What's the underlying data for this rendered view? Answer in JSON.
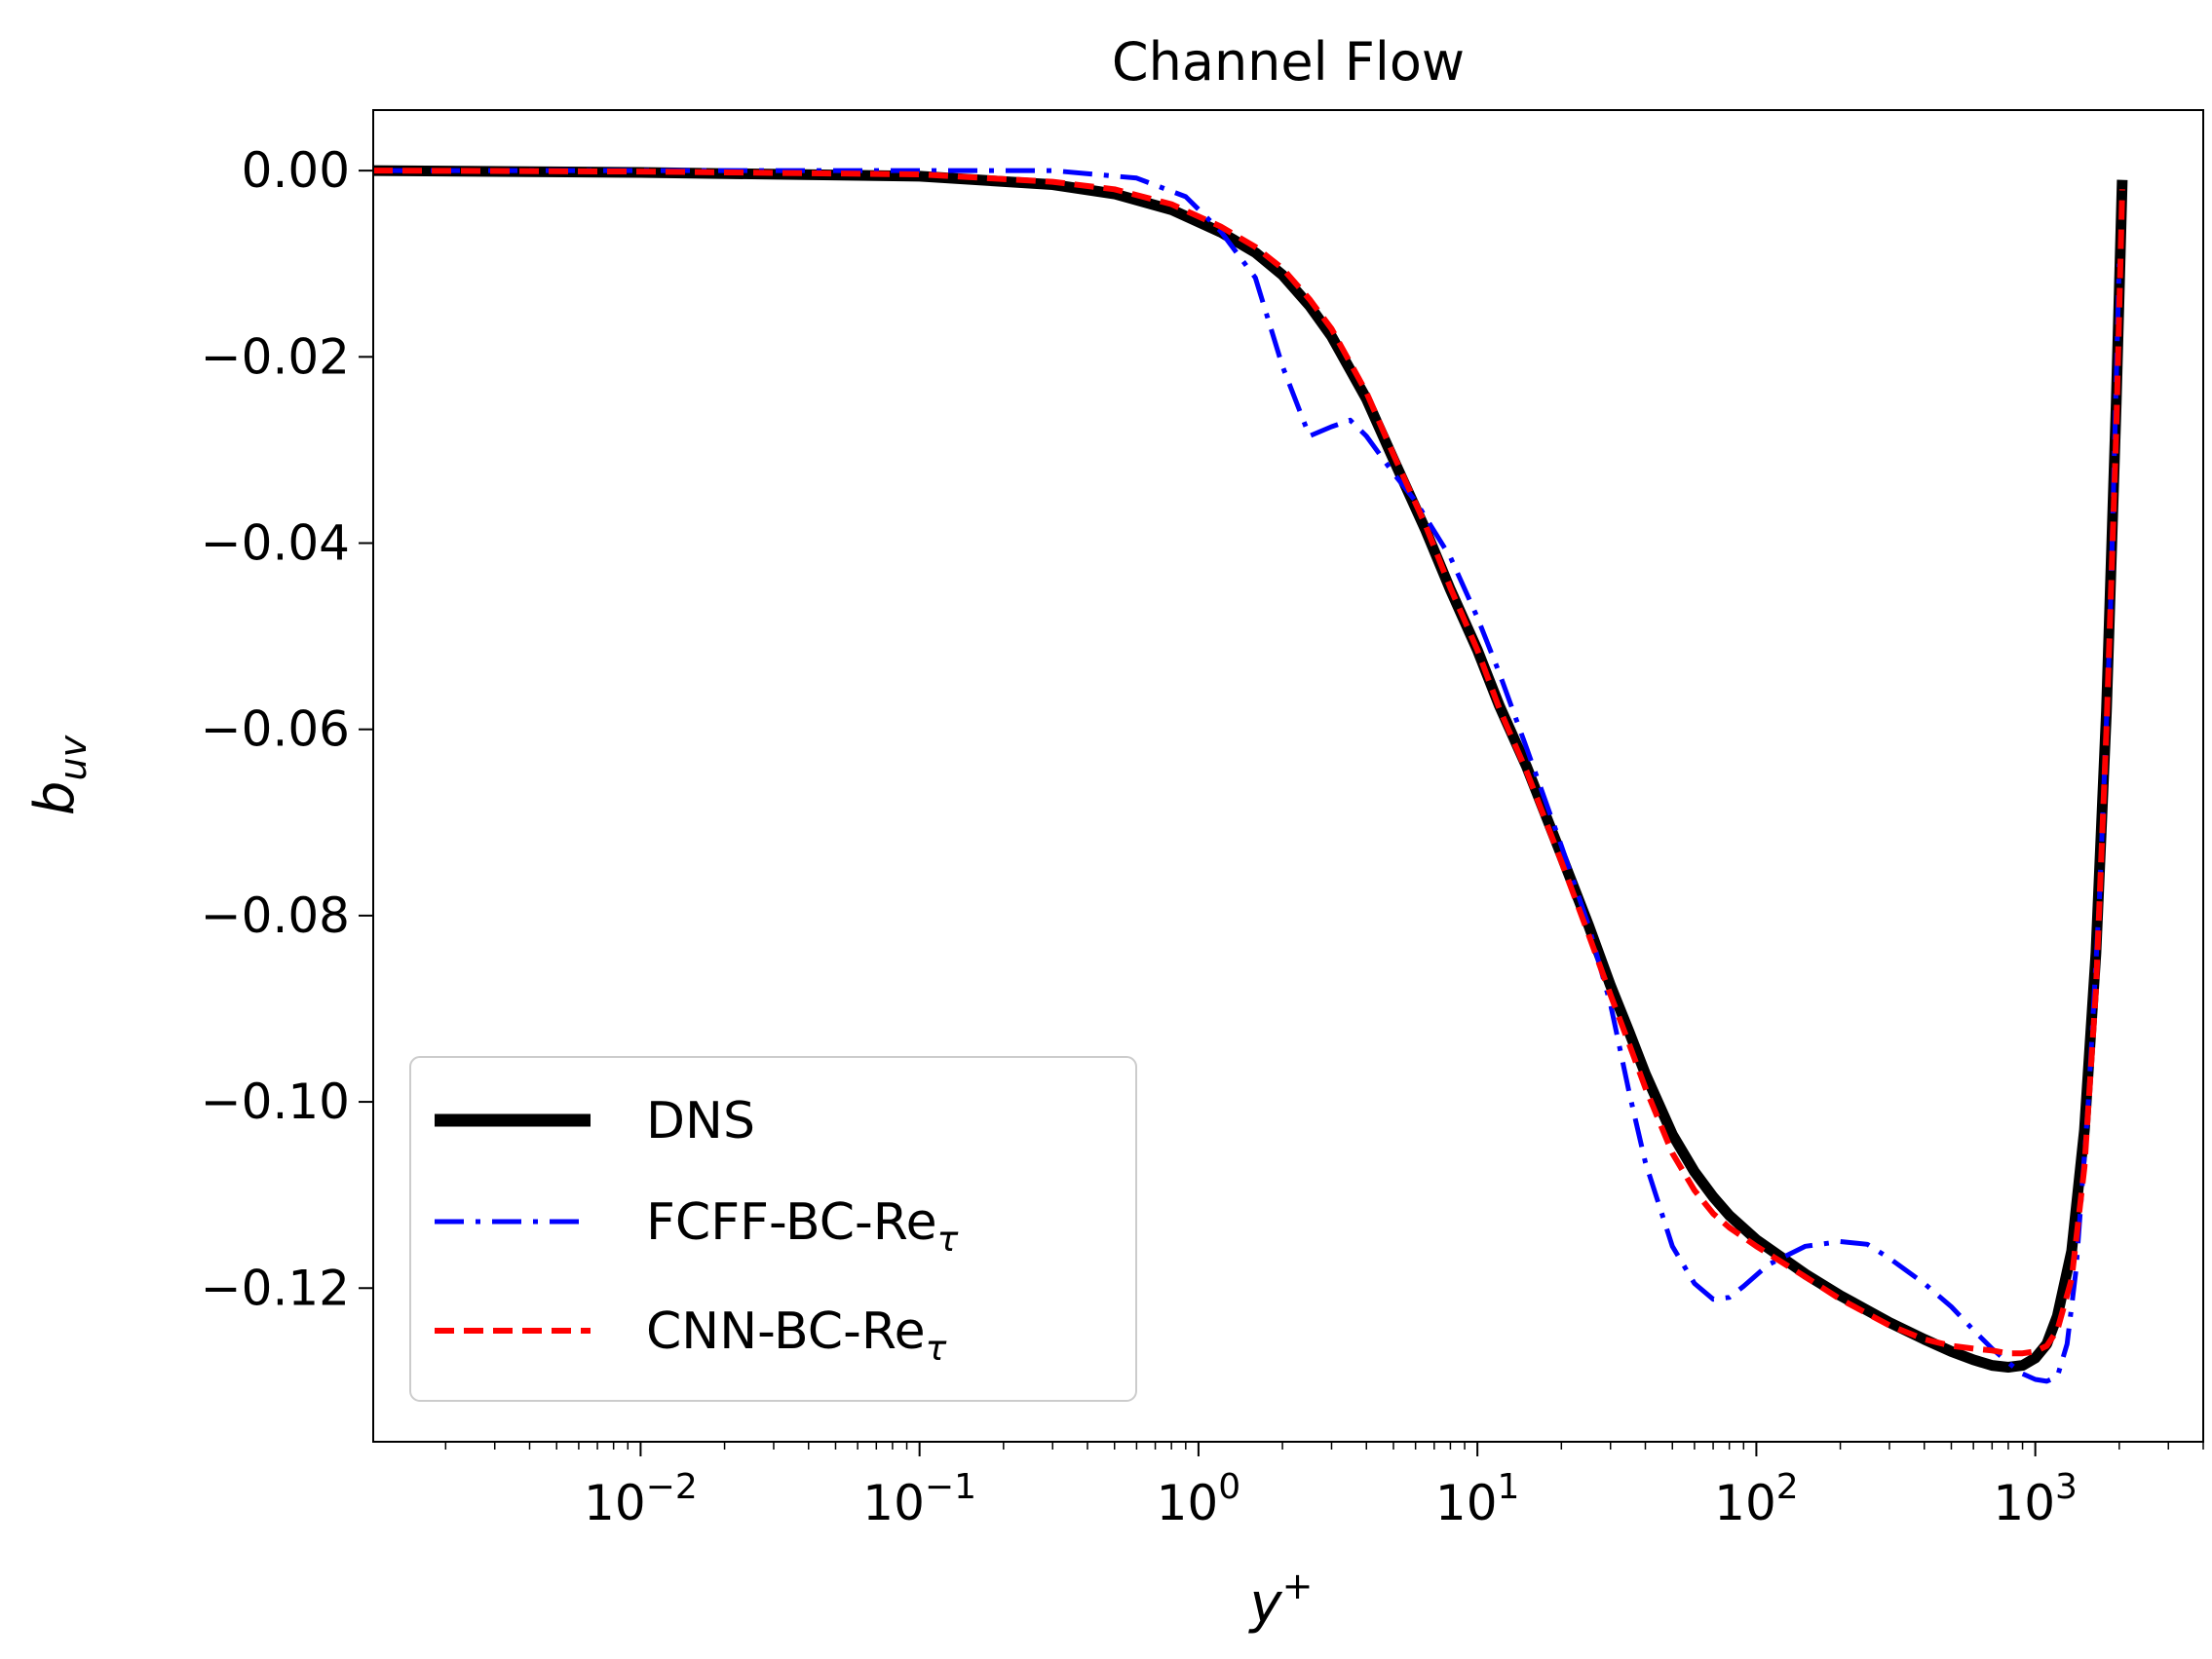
{
  "chart_data": {
    "type": "line",
    "title": "Channel Flow",
    "xlabel": "y",
    "xlabel_sup": "+",
    "ylabel": "b",
    "ylabel_sub": "uv",
    "xscale": "log",
    "xlim": [
      0.0011,
      4000
    ],
    "ylim": [
      -0.1365,
      0.0065
    ],
    "yticks": [
      {
        "value": 0.0,
        "label": "0.00"
      },
      {
        "value": -0.02,
        "label": "−0.02"
      },
      {
        "value": -0.04,
        "label": "−0.04"
      },
      {
        "value": -0.06,
        "label": "−0.06"
      },
      {
        "value": -0.08,
        "label": "−0.08"
      },
      {
        "value": -0.1,
        "label": "−0.10"
      },
      {
        "value": -0.12,
        "label": "−0.12"
      }
    ],
    "xticks": [
      {
        "value": 0.01,
        "base": "10",
        "exp": "−2"
      },
      {
        "value": 0.1,
        "base": "10",
        "exp": "−1"
      },
      {
        "value": 1,
        "base": "10",
        "exp": "0"
      },
      {
        "value": 10,
        "base": "10",
        "exp": "1"
      },
      {
        "value": 100,
        "base": "10",
        "exp": "2"
      },
      {
        "value": 1000,
        "base": "10",
        "exp": "3"
      }
    ],
    "legend_position": "lower-left",
    "series": [
      {
        "name": "DNS",
        "color": "#000000",
        "style": "solid",
        "x": [
          0.0011,
          0.01,
          0.1,
          0.3,
          0.5,
          0.8,
          1.2,
          1.6,
          2.0,
          2.5,
          3.0,
          4.0,
          5.0,
          6.5,
          8.0,
          10,
          12,
          15,
          20,
          25,
          30,
          35,
          40,
          50,
          60,
          70,
          80,
          100,
          150,
          200,
          300,
          400,
          500,
          600,
          700,
          800,
          900,
          1000,
          1100,
          1200,
          1350,
          1500,
          1650,
          1800,
          1950,
          2050
        ],
        "y": [
          0.0,
          -0.0002,
          -0.0006,
          -0.0015,
          -0.0025,
          -0.0042,
          -0.0066,
          -0.0088,
          -0.0112,
          -0.0145,
          -0.0178,
          -0.0245,
          -0.031,
          -0.0385,
          -0.045,
          -0.0515,
          -0.0575,
          -0.064,
          -0.0735,
          -0.081,
          -0.0875,
          -0.0925,
          -0.097,
          -0.1035,
          -0.1075,
          -0.1102,
          -0.1122,
          -0.1148,
          -0.1185,
          -0.1208,
          -0.1237,
          -0.1255,
          -0.1268,
          -0.1277,
          -0.1283,
          -0.1285,
          -0.1283,
          -0.1275,
          -0.126,
          -0.123,
          -0.116,
          -0.103,
          -0.084,
          -0.058,
          -0.025,
          -0.001
        ]
      },
      {
        "name": "FCFF-BC-Re",
        "name_sub": "τ",
        "color": "#0000ff",
        "style": "dashdot",
        "x": [
          0.0011,
          0.01,
          0.1,
          0.3,
          0.6,
          0.9,
          1.2,
          1.6,
          2.0,
          2.5,
          3.0,
          3.5,
          4.0,
          5.0,
          6.0,
          8.0,
          10,
          12,
          15,
          20,
          25,
          30,
          35,
          40,
          50,
          60,
          70,
          80,
          90,
          110,
          150,
          200,
          250,
          300,
          400,
          500,
          600,
          700,
          800,
          900,
          1000,
          1100,
          1200,
          1300,
          1400,
          1550,
          1700,
          1850,
          2000
        ],
        "y": [
          0.0,
          0.0,
          0.0,
          0.0,
          -0.0008,
          -0.0028,
          -0.0065,
          -0.0115,
          -0.021,
          -0.0285,
          -0.0275,
          -0.0268,
          -0.0285,
          -0.0325,
          -0.0355,
          -0.0415,
          -0.048,
          -0.054,
          -0.062,
          -0.0725,
          -0.081,
          -0.0895,
          -0.099,
          -0.1065,
          -0.1155,
          -0.1195,
          -0.1212,
          -0.121,
          -0.1198,
          -0.1175,
          -0.1155,
          -0.115,
          -0.1153,
          -0.1168,
          -0.1195,
          -0.122,
          -0.1245,
          -0.1265,
          -0.128,
          -0.1292,
          -0.1298,
          -0.13,
          -0.1295,
          -0.126,
          -0.118,
          -0.1,
          -0.078,
          -0.05,
          -0.01
        ]
      },
      {
        "name": "CNN-BC-Re",
        "name_sub": "τ",
        "color": "#ff0000",
        "style": "dashed",
        "x": [
          0.0011,
          0.01,
          0.1,
          0.3,
          0.5,
          0.8,
          1.2,
          1.6,
          2.0,
          2.5,
          3.0,
          4.0,
          5.0,
          6.5,
          8.0,
          10,
          12,
          15,
          20,
          25,
          30,
          35,
          40,
          50,
          60,
          70,
          80,
          100,
          150,
          200,
          300,
          400,
          500,
          600,
          700,
          800,
          900,
          1000,
          1100,
          1200,
          1350,
          1500,
          1650,
          1800,
          1950,
          2050
        ],
        "y": [
          0.0,
          -0.0001,
          -0.0004,
          -0.0012,
          -0.002,
          -0.0036,
          -0.006,
          -0.0082,
          -0.0105,
          -0.0138,
          -0.017,
          -0.0238,
          -0.0305,
          -0.038,
          -0.0448,
          -0.0515,
          -0.0578,
          -0.0645,
          -0.0742,
          -0.082,
          -0.0885,
          -0.0938,
          -0.0985,
          -0.1055,
          -0.1095,
          -0.112,
          -0.1135,
          -0.1155,
          -0.1188,
          -0.1212,
          -0.124,
          -0.1255,
          -0.1262,
          -0.1265,
          -0.1267,
          -0.127,
          -0.127,
          -0.1268,
          -0.1262,
          -0.1245,
          -0.119,
          -0.107,
          -0.088,
          -0.06,
          -0.028,
          -0.002
        ]
      }
    ]
  }
}
